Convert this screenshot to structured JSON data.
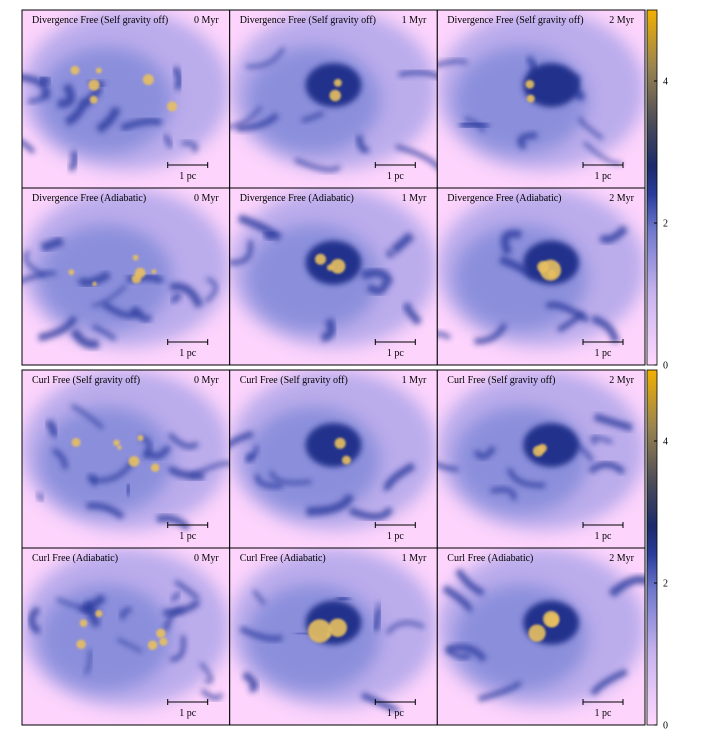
{
  "blocks": [
    {
      "panels": [
        {
          "title": "Divergence Free (Self gravity off)",
          "time": "0 Myr",
          "scale": "1 pc"
        },
        {
          "title": "Divergence Free (Self gravity off)",
          "time": "1 Myr",
          "scale": "1 pc"
        },
        {
          "title": "Divergence Free (Self gravity off)",
          "time": "2 Myr",
          "scale": "1 pc"
        },
        {
          "title": "Divergence Free (Adiabatic)",
          "time": "0 Myr",
          "scale": "1 pc"
        },
        {
          "title": "Divergence Free (Adiabatic)",
          "time": "1 Myr",
          "scale": "1 pc"
        },
        {
          "title": "Divergence Free (Adiabatic)",
          "time": "2 Myr",
          "scale": "1 pc"
        }
      ],
      "colorbar": {
        "lim": [
          0,
          5
        ],
        "ticks": [
          0,
          2,
          4
        ]
      }
    },
    {
      "panels": [
        {
          "title": "Curl Free (Self gravity off)",
          "time": "0 Myr",
          "scale": "1 pc"
        },
        {
          "title": "Curl Free (Self gravity off)",
          "time": "1 Myr",
          "scale": "1 pc"
        },
        {
          "title": "Curl Free (Self gravity off)",
          "time": "2 Myr",
          "scale": "1 pc"
        },
        {
          "title": "Curl Free (Adiabatic)",
          "time": "0 Myr",
          "scale": "1 pc"
        },
        {
          "title": "Curl Free (Adiabatic)",
          "time": "1 Myr",
          "scale": "1 pc"
        },
        {
          "title": "Curl Free (Adiabatic)",
          "time": "2 Myr",
          "scale": "1 pc"
        }
      ],
      "colorbar": {
        "lim": [
          0,
          5
        ],
        "ticks": [
          0,
          2,
          4
        ]
      }
    }
  ]
}
